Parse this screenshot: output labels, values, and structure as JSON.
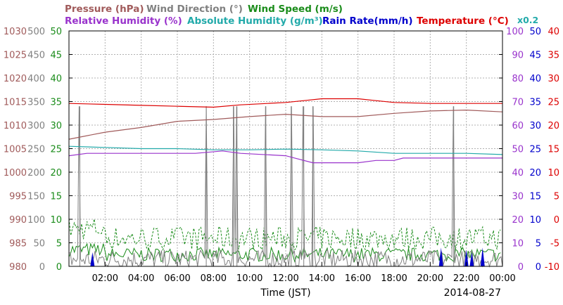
{
  "chart_data": {
    "type": "line",
    "date": "2014-08-27",
    "xlabel": "Time (JST)",
    "x_ticks": [
      "02:00",
      "04:00",
      "06:00",
      "08:00",
      "10:00",
      "12:00",
      "14:00",
      "16:00",
      "18:00",
      "20:00",
      "22:00",
      "00:00"
    ],
    "x_range_hours": [
      0,
      24
    ],
    "grid": true,
    "legend": {
      "row1": [
        {
          "text": "Pressure (hPa)",
          "color": "#a05a5a"
        },
        {
          "text": "Wind Direction (°)",
          "color": "#808080"
        },
        {
          "text": "Wind Speed (m/s)",
          "color": "#1a8c1a"
        }
      ],
      "row2": [
        {
          "text": "Relative Humidity (%)",
          "color": "#9933cc"
        },
        {
          "text": "Absolute Humidity (g/m³)",
          "color": "#22aaaa"
        },
        {
          "text": "Rain Rate(mm/h)",
          "color": "#0000cc"
        },
        {
          "text": "Temperature (°C)",
          "color": "#dd0000"
        }
      ],
      "rain_note": "x0.2"
    },
    "axes": {
      "pressure": {
        "color": "#a05a5a",
        "range": [
          980,
          1030
        ],
        "labels": [
          "1030",
          "1025",
          "1020",
          "1015",
          "1010",
          "1005",
          "1000",
          "995",
          "990",
          "985",
          "980"
        ]
      },
      "wind_direction": {
        "color": "#808080",
        "range": [
          0,
          500
        ],
        "labels": [
          "500",
          "450",
          "400",
          "350",
          "300",
          "250",
          "200",
          "150",
          "100",
          "50",
          "0"
        ]
      },
      "wind_speed": {
        "color": "#1a8c1a",
        "range": [
          0,
          50
        ],
        "labels": [
          "50",
          "45",
          "40",
          "35",
          "30",
          "25",
          "20",
          "15",
          "10",
          "5",
          "0"
        ]
      },
      "humidity": {
        "color": "#9933cc",
        "range": [
          0,
          100
        ],
        "labels": [
          "100",
          "90",
          "80",
          "70",
          "60",
          "50",
          "40",
          "30",
          "20",
          "10",
          "0"
        ]
      },
      "rain": {
        "color": "#0000cc",
        "range": [
          0,
          50
        ],
        "labels": [
          "50",
          "45",
          "40",
          "35",
          "30",
          "25",
          "20",
          "15",
          "10",
          "5",
          "0"
        ]
      },
      "temperature": {
        "color": "#dd0000",
        "range": [
          -10,
          40
        ],
        "labels": [
          "40",
          "35",
          "30",
          "25",
          "20",
          "15",
          "10",
          "5",
          "0",
          "-5",
          "-10"
        ]
      }
    },
    "series": [
      {
        "name": "Pressure (hPa)",
        "axis": "pressure",
        "color": "#a05a5a",
        "points": [
          [
            0,
            1007
          ],
          [
            2,
            1008.5
          ],
          [
            4,
            1009.5
          ],
          [
            6,
            1010.8
          ],
          [
            8,
            1011.2
          ],
          [
            10,
            1011.8
          ],
          [
            12,
            1012.3
          ],
          [
            14,
            1011.8
          ],
          [
            16,
            1011.8
          ],
          [
            18,
            1012.5
          ],
          [
            20,
            1013
          ],
          [
            22,
            1013.2
          ],
          [
            24,
            1012.8
          ]
        ]
      },
      {
        "name": "Temperature (°C)",
        "axis": "temperature",
        "color": "#dd0000",
        "points": [
          [
            0,
            24.6
          ],
          [
            2,
            24.4
          ],
          [
            4,
            24.2
          ],
          [
            6,
            24.0
          ],
          [
            8,
            23.8
          ],
          [
            9.5,
            24.3
          ],
          [
            11,
            24.6
          ],
          [
            12,
            24.8
          ],
          [
            13,
            25.2
          ],
          [
            14,
            25.6
          ],
          [
            16,
            25.6
          ],
          [
            17,
            25.2
          ],
          [
            18,
            24.8
          ],
          [
            20,
            24.6
          ],
          [
            22,
            24.6
          ],
          [
            24,
            24.6
          ]
        ]
      },
      {
        "name": "Absolute Humidity (g/m³)",
        "axis": "humidity",
        "color": "#22aaaa",
        "points": [
          [
            0,
            51
          ],
          [
            2,
            50.5
          ],
          [
            4,
            50
          ],
          [
            6,
            50
          ],
          [
            8,
            49.5
          ],
          [
            10,
            49.5
          ],
          [
            12,
            49.8
          ],
          [
            14,
            49.5
          ],
          [
            16,
            49
          ],
          [
            18,
            48
          ],
          [
            20,
            48
          ],
          [
            22,
            48
          ],
          [
            24,
            47.5
          ]
        ]
      },
      {
        "name": "Relative Humidity (%)",
        "axis": "humidity",
        "color": "#9933cc",
        "points": [
          [
            0,
            47
          ],
          [
            1,
            48
          ],
          [
            4,
            48
          ],
          [
            7,
            48
          ],
          [
            8.5,
            49
          ],
          [
            9.5,
            48
          ],
          [
            12,
            47
          ],
          [
            12.5,
            46
          ],
          [
            13.5,
            44
          ],
          [
            16,
            44
          ],
          [
            17,
            45
          ],
          [
            18,
            45
          ],
          [
            18.5,
            46
          ],
          [
            20,
            46
          ],
          [
            22,
            46
          ],
          [
            24,
            46
          ]
        ]
      },
      {
        "name": "Wind Direction (°)",
        "axis": "wind_direction",
        "color": "#808080",
        "spikes_hours": [
          0.6,
          7.6,
          9.1,
          9.3,
          10.9,
          12.3,
          13.0,
          13.5,
          21.3
        ],
        "baseline": 15
      },
      {
        "name": "Wind Speed (m/s)",
        "axis": "wind_speed",
        "color": "#1a8c1a",
        "mean": 2.5,
        "gust_mean": 6
      },
      {
        "name": "Rain Rate(mm/h)",
        "axis": "rain",
        "color": "#0000cc",
        "events": [
          [
            1.3,
            3
          ],
          [
            20.6,
            4
          ],
          [
            22.0,
            3.5
          ],
          [
            22.3,
            3
          ],
          [
            22.9,
            4
          ]
        ]
      }
    ]
  }
}
